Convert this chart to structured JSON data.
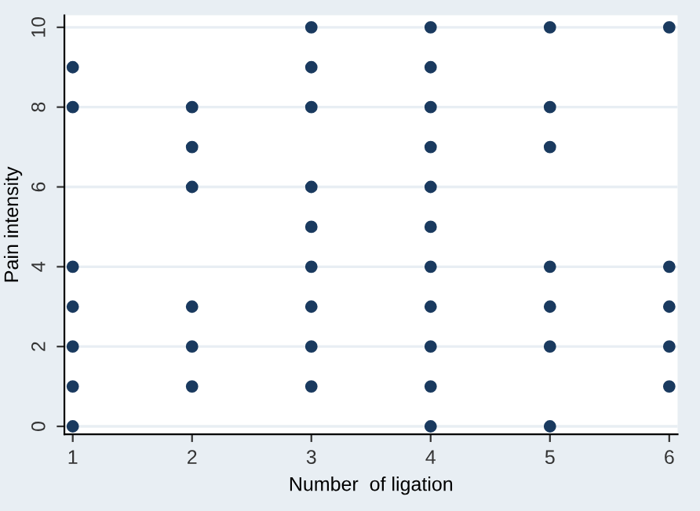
{
  "chart_data": {
    "type": "scatter",
    "xlabel": "Number  of ligation",
    "ylabel": "Pain intensity",
    "x": [
      1,
      1,
      1,
      1,
      1,
      1,
      1,
      2,
      2,
      2,
      2,
      2,
      2,
      3,
      3,
      3,
      3,
      3,
      3,
      3,
      3,
      3,
      4,
      4,
      4,
      4,
      4,
      4,
      4,
      4,
      4,
      4,
      4,
      5,
      5,
      5,
      5,
      5,
      5,
      5,
      6,
      6,
      6,
      6,
      6
    ],
    "series": [
      {
        "color": "#1a3a5f",
        "values": [
          0,
          1,
          2,
          3,
          4,
          8,
          9,
          1,
          2,
          3,
          6,
          7,
          8,
          1,
          2,
          3,
          4,
          5,
          6,
          8,
          9,
          10,
          0,
          1,
          2,
          3,
          4,
          5,
          6,
          7,
          8,
          9,
          10,
          0,
          2,
          3,
          4,
          7,
          8,
          10,
          1,
          2,
          3,
          4,
          10
        ]
      }
    ],
    "xlim": [
      0.93,
      6.07
    ],
    "ylim": [
      -0.2,
      10.3
    ],
    "xticks": [
      1,
      2,
      3,
      4,
      5,
      6
    ],
    "yticks": [
      0,
      2,
      4,
      6,
      8,
      10
    ],
    "grid": "y",
    "marker": "circle",
    "legend": false
  }
}
